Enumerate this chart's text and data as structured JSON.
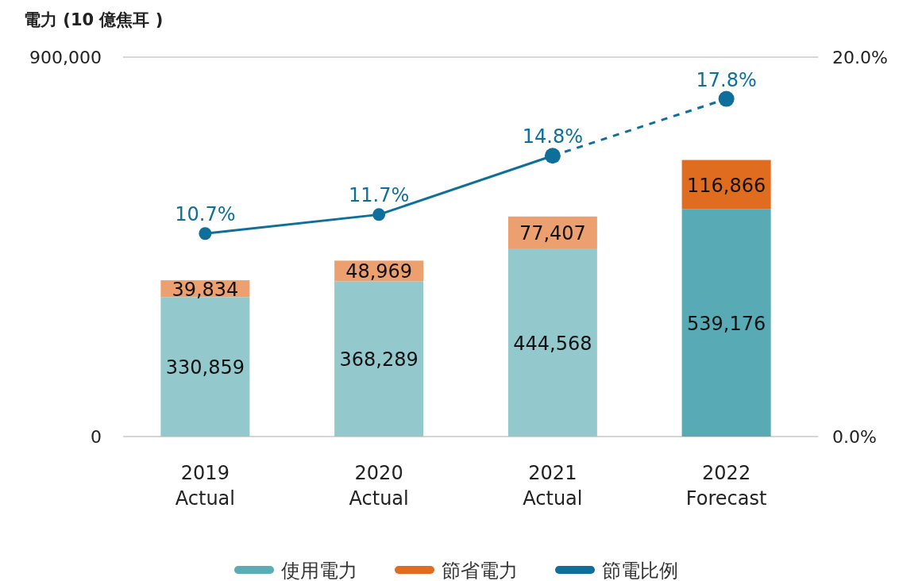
{
  "chart_data": {
    "type": "bar",
    "stacked": true,
    "ylabel": "電力 (10 億焦耳 )",
    "categories": [
      "2019 Actual",
      "2020 Actual",
      "2021 Actual",
      "2022 Forecast"
    ],
    "series": [
      {
        "name": "使用電力",
        "color": "#5aacb5",
        "colors": [
          "#93c9cd",
          "#93c9cd",
          "#93c9cd",
          "#58abb4"
        ],
        "values": [
          330859,
          368289,
          444568,
          539176
        ],
        "value_labels": [
          "330,859",
          "368,289",
          "444,568",
          "539,176"
        ]
      },
      {
        "name": "節省電力",
        "color": "#e06c1f",
        "colors": [
          "#eca06f",
          "#eca06f",
          "#eca06f",
          "#e06c1f"
        ],
        "values": [
          39834,
          48969,
          77407,
          116866
        ],
        "value_labels": [
          "39,834",
          "48,969",
          "77,407",
          "116,866"
        ]
      },
      {
        "name": "節電比例",
        "type": "line",
        "axis": "y2",
        "color": "#0e6f9a",
        "marker": "circle",
        "line_style": "solid",
        "values": [
          10.7,
          11.7,
          14.8,
          null
        ],
        "value_labels": [
          "10.7%",
          "11.7%",
          "14.8%",
          null
        ]
      },
      {
        "type": "line",
        "axis": "y2",
        "color": "#0e6f9a",
        "marker": "circle",
        "line_style": "dashed",
        "x": [
          "2021 Actual",
          "2022 Forecast"
        ],
        "values": [
          14.8,
          17.8
        ],
        "value_labels": [
          null,
          "17.8%"
        ]
      }
    ],
    "ylim": [
      0,
      900000
    ],
    "yticks": [
      0,
      {
        "value": 900000,
        "label": "900,000"
      }
    ],
    "y2lim": [
      0,
      20
    ],
    "y2ticks": [
      {
        "value": 0,
        "label": "0.0%"
      },
      {
        "value": 20,
        "label": "20.0%"
      }
    ],
    "legend": "bottom"
  }
}
